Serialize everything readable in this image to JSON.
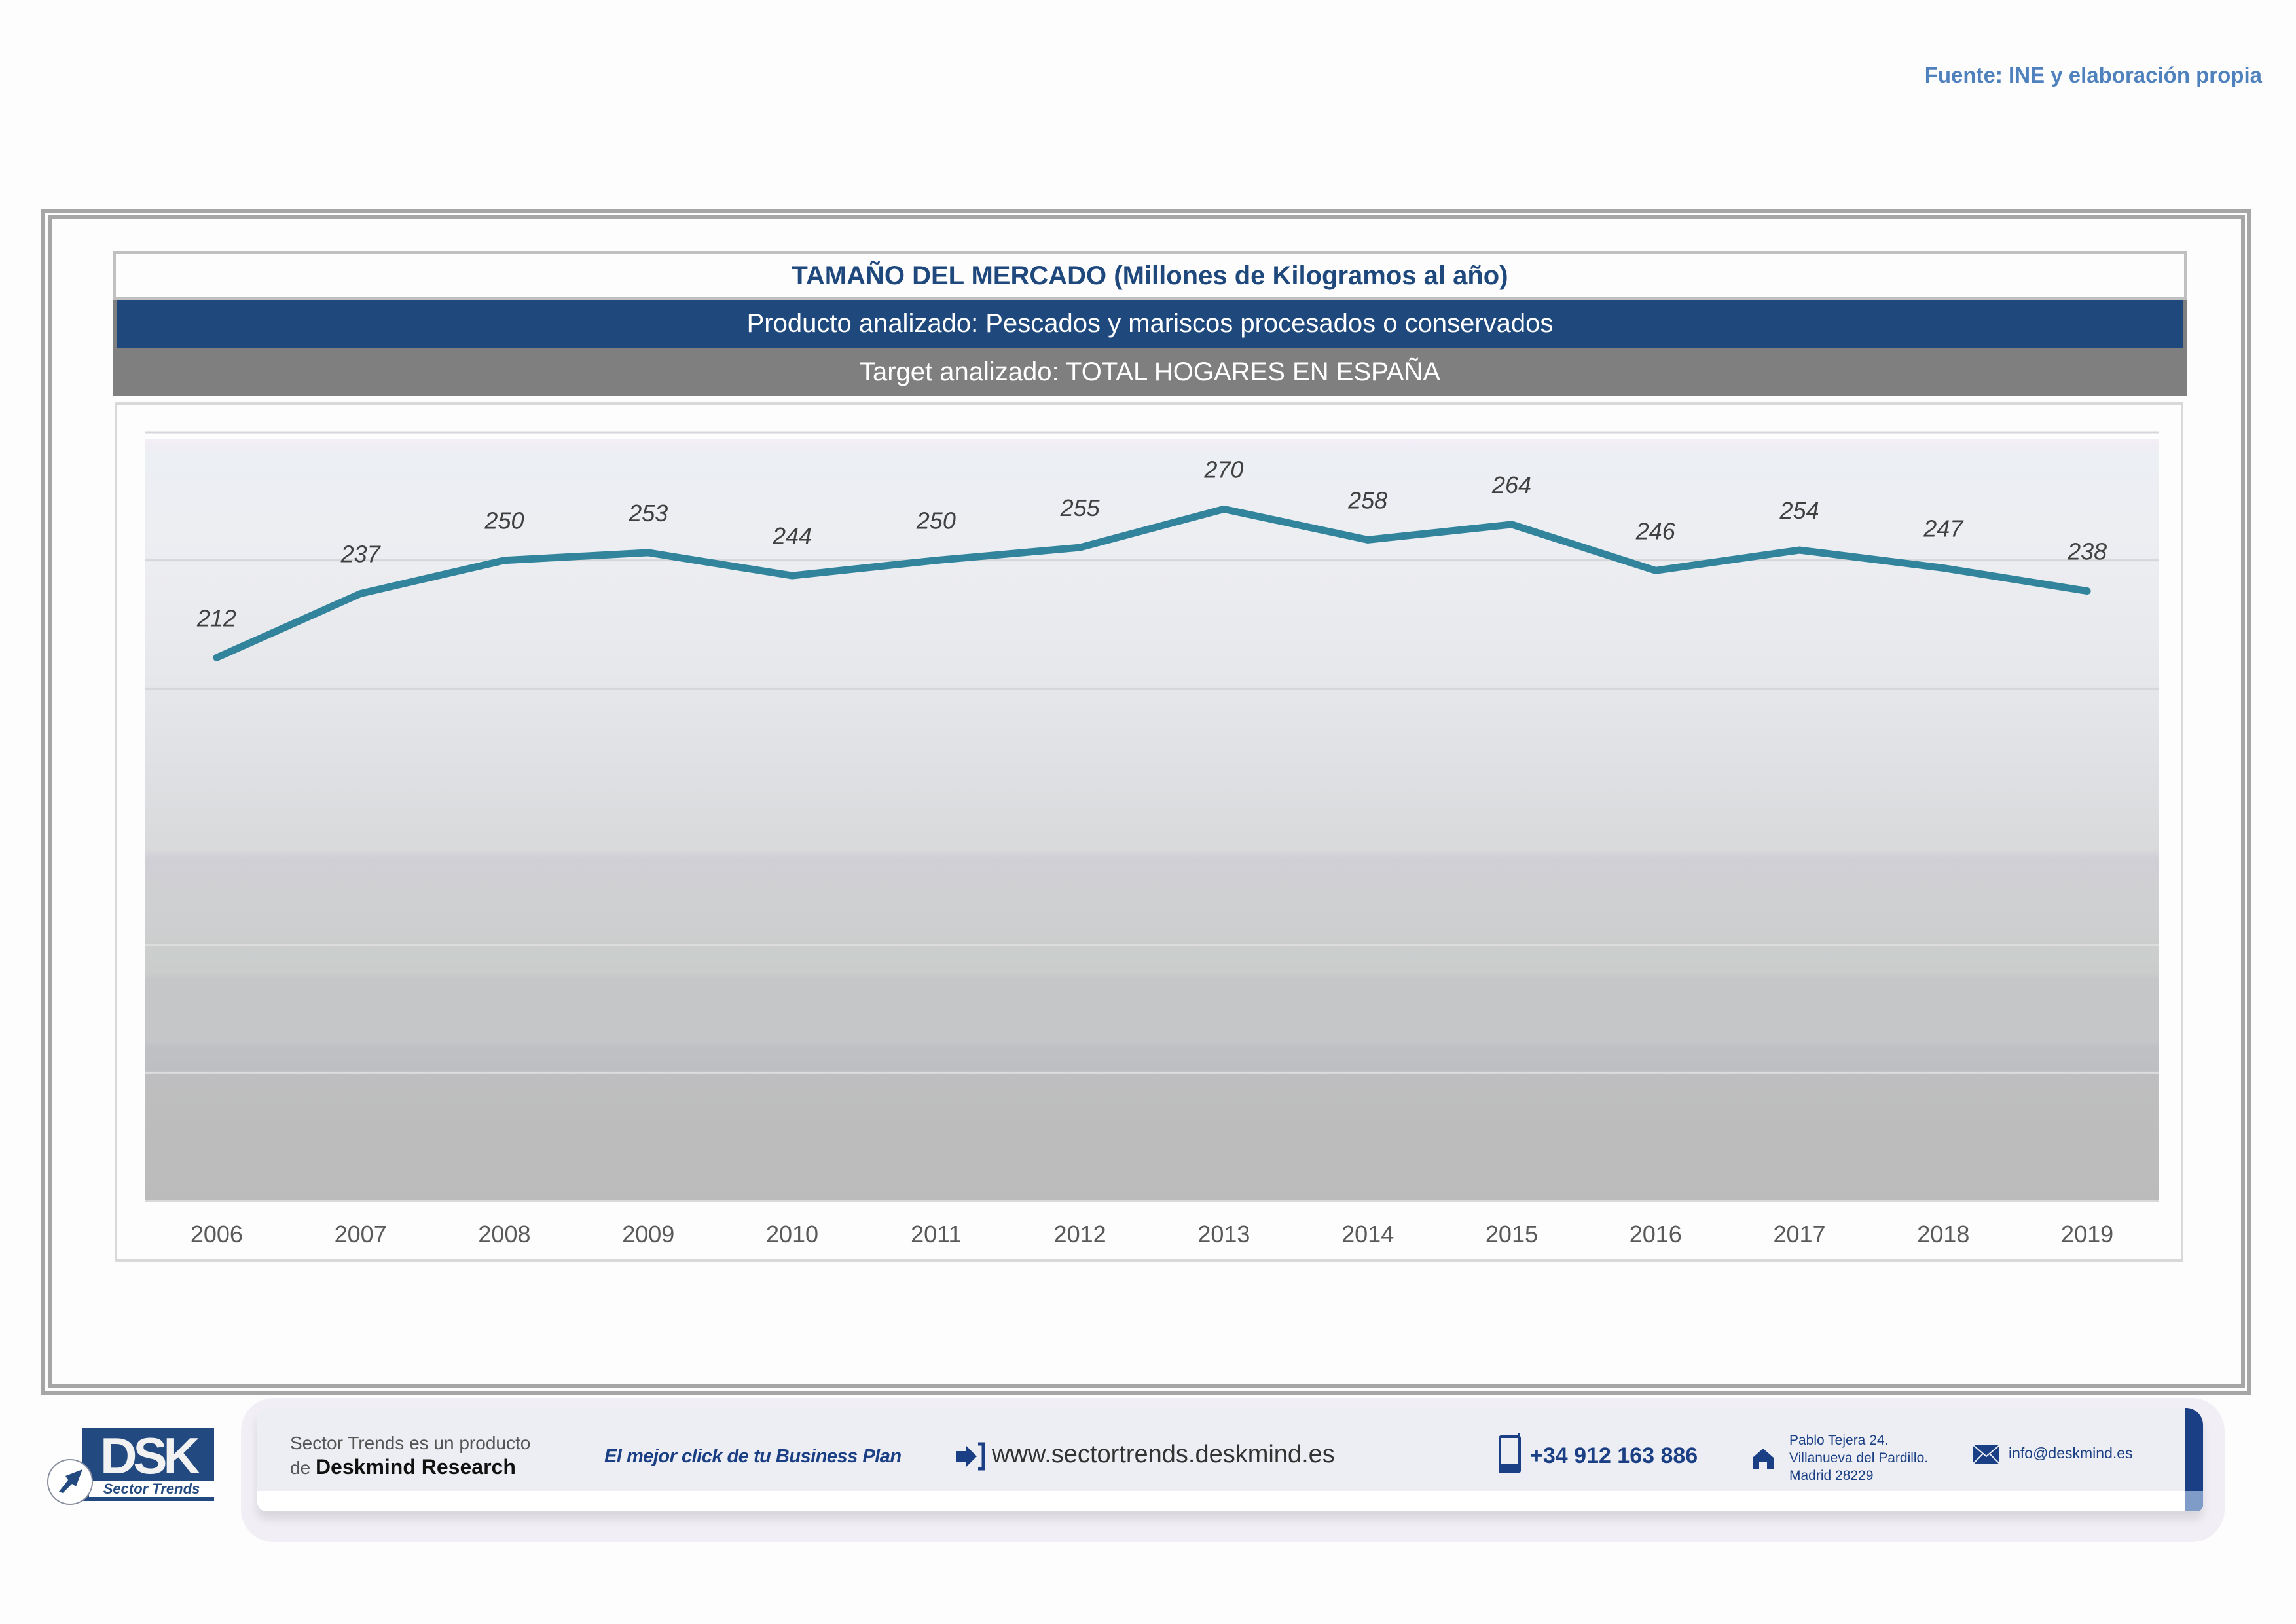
{
  "source": "Fuente: INE y elaboración propia",
  "header": {
    "title": "TAMAÑO DEL MERCADO (Millones de Kilogramos al año)",
    "product": "Producto analizado: Pescados y mariscos procesados o conservados",
    "target": "Target analizado: TOTAL HOGARES EN ESPAÑA"
  },
  "colors": {
    "line": "#31849B",
    "title_text": "#1F497D",
    "product_band": "#1F497D",
    "target_band": "#7F7F7F",
    "source_text": "#4F81BD"
  },
  "chart_data": {
    "type": "line",
    "title": "TAMAÑO DEL MERCADO (Millones de Kilogramos al año)",
    "xlabel": "",
    "ylabel": "",
    "categories": [
      "2006",
      "2007",
      "2008",
      "2009",
      "2010",
      "2011",
      "2012",
      "2013",
      "2014",
      "2015",
      "2016",
      "2017",
      "2018",
      "2019"
    ],
    "series": [
      {
        "name": "Tamaño del mercado",
        "values": [
          212,
          237,
          250,
          253,
          244,
          250,
          255,
          270,
          258,
          264,
          246,
          254,
          247,
          238
        ]
      }
    ],
    "data_labels": [
      "212",
      "237",
      "250",
      "253",
      "244",
      "250",
      "255",
      "270",
      "258",
      "264",
      "246",
      "254",
      "247",
      "238"
    ],
    "ylim": [
      0,
      300
    ],
    "y_gridlines": [
      0,
      50,
      100,
      150,
      200,
      250,
      300
    ],
    "y_tick_labels_visible": false,
    "grid": true,
    "legend": "none"
  },
  "footer": {
    "logo_text": "DSK",
    "logo_subtitle": "Sector Trends",
    "product_line1": "Sector Trends es un producto",
    "product_line2_prefix": "de",
    "product_line2_brand": "Deskmind Research",
    "slogan": "El mejor click de tu Business Plan",
    "website": "www.sectortrends.deskmind.es",
    "phone": "+34 912 163 886",
    "address": [
      "Pablo Tejera 24.",
      "Villanueva del Pardillo.",
      "Madrid 28229"
    ],
    "email": "info@deskmind.es",
    "icons": {
      "website": "arrow-into-bracket-icon",
      "phone": "mobile-phone-icon",
      "address": "house-icon",
      "email": "envelope-icon"
    }
  }
}
